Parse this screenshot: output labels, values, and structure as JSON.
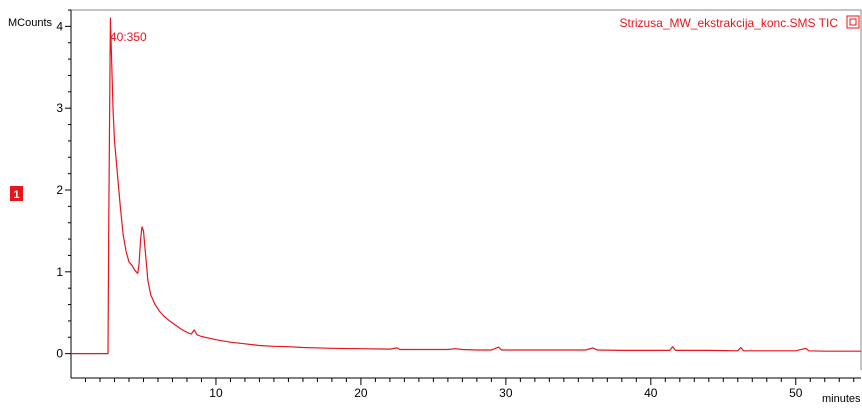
{
  "trace_name": "Strizusa_MW_ekstrakcija_konc.SMS TIC",
  "trace_badge": "1",
  "colors": {
    "trace": "#e8141c",
    "axis": "#000000",
    "badge_bg": "#e8141c",
    "badge_text": "#ffffff",
    "background": "#ffffff"
  },
  "chart_data": {
    "type": "line",
    "title": "",
    "ylabel": "MCounts",
    "xlabel": "minutes",
    "xlim": [
      0,
      54.5
    ],
    "ylim": [
      -0.2,
      4.2
    ],
    "xticks": [
      10,
      20,
      30,
      40,
      50
    ],
    "yticks": [
      0,
      1,
      2,
      3,
      4
    ],
    "annotation": "40:350",
    "grid": false,
    "legend": "top-right",
    "series": [
      {
        "name": "Strizusa_MW_ekstrakcija_konc.SMS TIC",
        "x": [
          0,
          2.55,
          2.6,
          2.65,
          2.72,
          2.8,
          2.9,
          3.0,
          3.2,
          3.4,
          3.6,
          3.8,
          4.0,
          4.2,
          4.4,
          4.5,
          4.6,
          4.7,
          4.8,
          4.9,
          5.0,
          5.1,
          5.2,
          5.3,
          5.5,
          5.8,
          6.1,
          6.4,
          6.8,
          7.2,
          7.6,
          8.0,
          8.3,
          8.5,
          8.7,
          9.0,
          9.5,
          10,
          11,
          12,
          13,
          14,
          15,
          16,
          18,
          20,
          22,
          22.5,
          22.7,
          24,
          26,
          26.5,
          27,
          28,
          29,
          29.5,
          29.7,
          30,
          32,
          34,
          35.5,
          36,
          36.3,
          38,
          40,
          41.3,
          41.5,
          41.7,
          42,
          44,
          46,
          46.2,
          46.4,
          48,
          50,
          50.7,
          50.9,
          52,
          54.5
        ],
        "y": [
          0,
          0,
          1.5,
          2.6,
          4.1,
          3.6,
          3.0,
          2.6,
          2.2,
          1.8,
          1.45,
          1.25,
          1.12,
          1.08,
          1.02,
          1.0,
          0.98,
          1.1,
          1.4,
          1.55,
          1.5,
          1.3,
          1.1,
          0.9,
          0.72,
          0.6,
          0.52,
          0.46,
          0.4,
          0.35,
          0.3,
          0.26,
          0.24,
          0.29,
          0.23,
          0.21,
          0.19,
          0.17,
          0.14,
          0.12,
          0.1,
          0.09,
          0.085,
          0.075,
          0.065,
          0.06,
          0.055,
          0.07,
          0.05,
          0.05,
          0.05,
          0.06,
          0.05,
          0.045,
          0.045,
          0.08,
          0.045,
          0.045,
          0.045,
          0.045,
          0.045,
          0.07,
          0.045,
          0.04,
          0.04,
          0.04,
          0.085,
          0.04,
          0.04,
          0.04,
          0.035,
          0.075,
          0.035,
          0.035,
          0.035,
          0.065,
          0.035,
          0.03,
          0.03
        ]
      }
    ]
  }
}
